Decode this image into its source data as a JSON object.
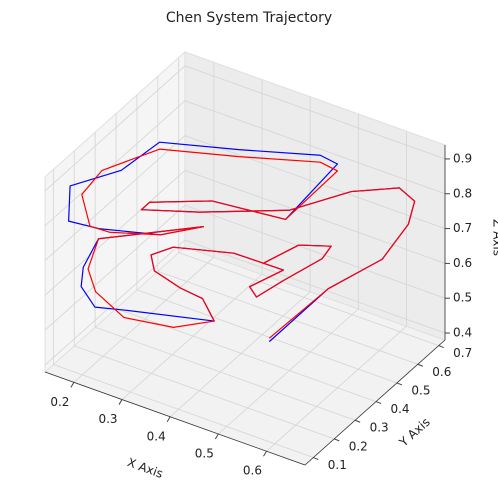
{
  "chart_data": {
    "type": "line3d",
    "title": "Chen System Trajectory",
    "xlabel": "X Axis",
    "ylabel": "Y Axis",
    "zlabel": "Z Axis",
    "xlim": [
      0.14,
      0.68
    ],
    "ylim": [
      0.06,
      0.73
    ],
    "zlim": [
      0.38,
      0.94
    ],
    "xticks": [
      0.2,
      0.3,
      0.4,
      0.5,
      0.6
    ],
    "yticks": [
      0.1,
      0.2,
      0.3,
      0.4,
      0.5,
      0.6,
      0.7
    ],
    "zticks": [
      0.4,
      0.5,
      0.6,
      0.7,
      0.8,
      0.9
    ],
    "grid": true,
    "series": [
      {
        "color": "#0000ff",
        "x": [
          0.48,
          0.52,
          0.58,
          0.63,
          0.63,
          0.62,
          0.52,
          0.43,
          0.3,
          0.21,
          0.21,
          0.3,
          0.44,
          0.5,
          0.46,
          0.33,
          0.2,
          0.19,
          0.14,
          0.15,
          0.18,
          0.28,
          0.33,
          0.16,
          0.15,
          0.15,
          0.17,
          0.22,
          0.37,
          0.35,
          0.3,
          0.25,
          0.23,
          0.25,
          0.35,
          0.44,
          0.4,
          0.41,
          0.44,
          0.49,
          0.5,
          0.45,
          0.41
        ],
        "y": [
          0.35,
          0.54,
          0.66,
          0.67,
          0.7,
          0.65,
          0.65,
          0.56,
          0.43,
          0.36,
          0.4,
          0.49,
          0.52,
          0.63,
          0.64,
          0.55,
          0.47,
          0.31,
          0.18,
          0.15,
          0.23,
          0.29,
          0.38,
          0.27,
          0.22,
          0.21,
          0.23,
          0.26,
          0.34,
          0.33,
          0.34,
          0.33,
          0.36,
          0.42,
          0.48,
          0.51,
          0.44,
          0.45,
          0.51,
          0.58,
          0.6,
          0.56,
          0.48
        ],
        "z": [
          0.48,
          0.55,
          0.6,
          0.72,
          0.77,
          0.83,
          0.77,
          0.72,
          0.72,
          0.72,
          0.72,
          0.72,
          0.72,
          0.85,
          0.85,
          0.85,
          0.85,
          0.85,
          0.85,
          0.77,
          0.72,
          0.72,
          0.72,
          0.66,
          0.6,
          0.55,
          0.49,
          0.49,
          0.49,
          0.55,
          0.55,
          0.58,
          0.6,
          0.6,
          0.6,
          0.58,
          0.55,
          0.52,
          0.55,
          0.6,
          0.63,
          0.63,
          0.6
        ]
      },
      {
        "color": "#ff0000",
        "x": [
          0.48,
          0.52,
          0.58,
          0.63,
          0.63,
          0.62,
          0.52,
          0.43,
          0.3,
          0.21,
          0.21,
          0.3,
          0.44,
          0.5,
          0.46,
          0.33,
          0.2,
          0.15,
          0.16,
          0.19,
          0.2,
          0.28,
          0.33,
          0.16,
          0.16,
          0.18,
          0.23,
          0.32,
          0.37,
          0.35,
          0.3,
          0.25,
          0.23,
          0.25,
          0.35,
          0.44,
          0.4,
          0.41,
          0.44,
          0.49,
          0.5,
          0.45,
          0.41
        ],
        "y": [
          0.35,
          0.54,
          0.66,
          0.67,
          0.7,
          0.65,
          0.65,
          0.56,
          0.43,
          0.36,
          0.4,
          0.49,
          0.52,
          0.63,
          0.64,
          0.55,
          0.47,
          0.31,
          0.19,
          0.16,
          0.23,
          0.29,
          0.38,
          0.27,
          0.22,
          0.21,
          0.23,
          0.26,
          0.34,
          0.33,
          0.34,
          0.33,
          0.36,
          0.42,
          0.48,
          0.51,
          0.44,
          0.45,
          0.51,
          0.58,
          0.6,
          0.56,
          0.48
        ],
        "z": [
          0.49,
          0.55,
          0.6,
          0.72,
          0.77,
          0.83,
          0.77,
          0.72,
          0.72,
          0.72,
          0.72,
          0.72,
          0.72,
          0.83,
          0.83,
          0.83,
          0.83,
          0.83,
          0.83,
          0.77,
          0.72,
          0.72,
          0.72,
          0.66,
          0.6,
          0.55,
          0.49,
          0.49,
          0.49,
          0.55,
          0.55,
          0.58,
          0.6,
          0.6,
          0.6,
          0.58,
          0.55,
          0.52,
          0.55,
          0.6,
          0.63,
          0.63,
          0.6
        ]
      }
    ]
  }
}
